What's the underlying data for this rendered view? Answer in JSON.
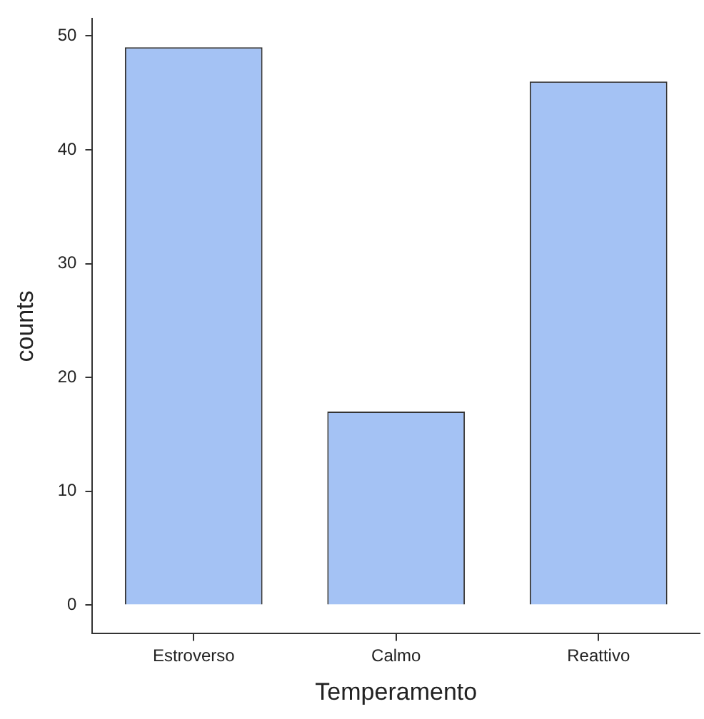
{
  "chart_data": {
    "type": "bar",
    "xlabel": "Temperamento",
    "ylabel": "counts",
    "categories": [
      "Estroverso",
      "Calmo",
      "Reattivo"
    ],
    "values": [
      49,
      17,
      46
    ],
    "color": "#a4c2f4",
    "ylim": [
      -2.5,
      51.5
    ],
    "yticks": [
      0,
      10,
      20,
      30,
      40,
      50
    ],
    "grid": false,
    "legend": false
  }
}
